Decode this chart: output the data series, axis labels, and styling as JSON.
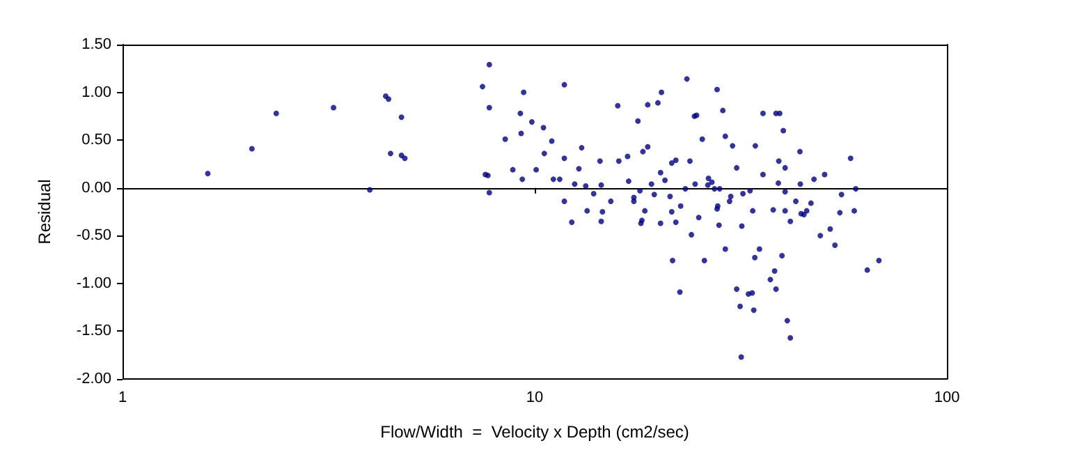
{
  "chart_data": {
    "type": "scatter",
    "xlabel": "Flow/Width  =  Velocity x Depth (cm2/sec)",
    "ylabel": "Residual",
    "log": "x",
    "marker": "circle",
    "xlim": [
      1,
      100
    ],
    "xticks": [
      1,
      10,
      100
    ],
    "ylim": [
      -2,
      1.5
    ],
    "yticks": [
      {
        "value": -2,
        "label": "-2.00"
      },
      {
        "value": -1.5,
        "label": "-1.50"
      },
      {
        "value": -1,
        "label": "-1.00"
      },
      {
        "value": -0.5,
        "label": "-0.50"
      },
      {
        "value": 0,
        "label": "0.00"
      },
      {
        "value": 0.5,
        "label": "0.50"
      },
      {
        "value": 1,
        "label": "1.00"
      },
      {
        "value": 1.5,
        "label": "1.50"
      }
    ],
    "series": [
      {
        "color": "#000080",
        "x": [
          1.61,
          2.06,
          2.36,
          3.25,
          3.98,
          4.35,
          4.42,
          4.47,
          4.75,
          4.75,
          4.84,
          7.47,
          7.76,
          7.76,
          7.59,
          7.7,
          7.76,
          8.48,
          8.85,
          9.23,
          9.4,
          9.27,
          9.33,
          9.84,
          10.08,
          10.5,
          10.55,
          11.0,
          11.1,
          11.5,
          11.8,
          11.8,
          11.8,
          12.3,
          12.5,
          12.8,
          13.0,
          13.3,
          13.4,
          13.9,
          14.4,
          14.5,
          14.5,
          14.6,
          15.3,
          15.9,
          16.0,
          16.8,
          16.9,
          17.4,
          17.8,
          18.3,
          18.8,
          18.8,
          19.2,
          18.5,
          18.2,
          18.1,
          19.9,
          20.3,
          20.2,
          20.7,
          20.2,
          21.3,
          21.5,
          21.5,
          21.6,
          22.5,
          22.0,
          22.0,
          22.6,
          23.4,
          23.2,
          23.8,
          24.4,
          24.7,
          24.5,
          25.0,
          25.5,
          25.8,
          26.4,
          27.7,
          27.7,
          28.0,
          28.1,
          28.6,
          29.0,
          29.0,
          30.2,
          30.9,
          30.9,
          31.5,
          31.7,
          31.8,
          32.0,
          33.0,
          33.7,
          34.0,
          34.2,
          33.8,
          34.3,
          35.1,
          35.8,
          35.8,
          37.3,
          38.2,
          38.5,
          38.5,
          39.3,
          39.1,
          39.8,
          40.1,
          40.5,
          40.5,
          41.0,
          41.7,
          41.7,
          43.0,
          44.0,
          44.1,
          45.0,
          46.8,
          49.3,
          50.5,
          52.1,
          53.5,
          55.0,
          55.5,
          58.4,
          59.6,
          60.1,
          64.1,
          68.4,
          37.9,
          39.0,
          40.5,
          44.3,
          45.7,
          47.6,
          33.3,
          29.7,
          29.9,
          27.3,
          26.9,
          17.4,
          18.0,
          19.5,
          24.0,
          26.3,
          27.8
        ],
        "values": [
          0.15,
          0.41,
          0.78,
          0.84,
          -0.02,
          0.96,
          0.93,
          0.36,
          0.74,
          0.34,
          0.31,
          1.06,
          1.29,
          0.84,
          0.14,
          0.13,
          -0.05,
          0.51,
          0.19,
          0.78,
          1.0,
          0.57,
          0.09,
          0.69,
          0.19,
          0.63,
          0.36,
          0.49,
          0.09,
          0.09,
          1.08,
          0.31,
          -0.14,
          -0.36,
          0.04,
          0.2,
          0.42,
          0.02,
          -0.24,
          -0.06,
          0.28,
          0.03,
          -0.35,
          -0.25,
          -0.14,
          0.86,
          0.28,
          0.33,
          0.07,
          -0.1,
          0.7,
          0.38,
          0.43,
          0.87,
          0.04,
          -0.24,
          -0.34,
          -0.37,
          0.89,
          1.0,
          0.16,
          0.08,
          -0.37,
          -0.09,
          0.26,
          -0.25,
          -0.76,
          -1.09,
          0.29,
          -0.36,
          -0.19,
          1.14,
          -0.01,
          0.28,
          0.75,
          0.76,
          0.04,
          -0.31,
          0.51,
          -0.76,
          0.1,
          1.03,
          -0.22,
          -0.39,
          -0.01,
          0.81,
          0.54,
          -0.64,
          0.44,
          0.21,
          -1.06,
          -1.24,
          -1.77,
          -0.4,
          -0.06,
          -1.11,
          -1.1,
          -1.28,
          -0.73,
          -0.24,
          0.44,
          -0.64,
          0.78,
          0.14,
          -0.96,
          -0.87,
          -1.06,
          0.78,
          0.78,
          0.28,
          -0.71,
          0.6,
          -0.24,
          -0.04,
          -1.39,
          -1.57,
          -0.35,
          -0.14,
          0.38,
          0.04,
          -0.28,
          -0.16,
          -0.5,
          0.14,
          -0.43,
          -0.6,
          -0.26,
          -0.07,
          0.31,
          -0.24,
          -0.01,
          -0.86,
          -0.76,
          -0.23,
          0.05,
          0.21,
          -0.27,
          -0.24,
          0.09,
          -0.03,
          -0.14,
          -0.09,
          -0.01,
          0.06,
          -0.14,
          -0.03,
          -0.07,
          -0.49,
          0.03,
          -0.19
        ]
      }
    ]
  }
}
